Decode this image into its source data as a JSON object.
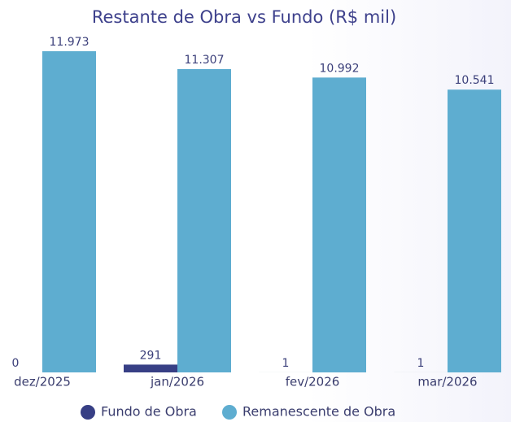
{
  "chart_data": {
    "type": "bar",
    "title": "Restante de Obra vs Fundo (R$ mil)",
    "categories": [
      "dez/2025",
      "jan/2026",
      "fev/2026",
      "mar/2026"
    ],
    "series": [
      {
        "name": "Fundo de Obra",
        "color": "#373f85",
        "values": [
          0,
          291,
          1,
          1
        ]
      },
      {
        "name": "Remanescente de Obra",
        "color": "#5eadd0",
        "values": [
          11973,
          11307,
          10992,
          10541
        ],
        "value_labels": [
          "11.973",
          "11.307",
          "10.992",
          "10.541"
        ]
      }
    ],
    "legend": "bottom"
  }
}
